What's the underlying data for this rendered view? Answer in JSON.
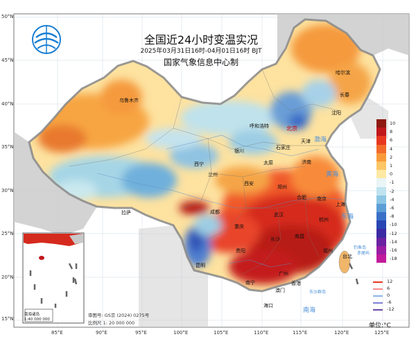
{
  "title": {
    "main": "全国近24小时变温实况",
    "time_range": "2025年03月31日16时-04月01日16时 BJT",
    "organization": "国家气象信息中心制"
  },
  "latitude_labels": [
    "50°N",
    "45°N",
    "40°N",
    "35°N",
    "30°N",
    "25°N",
    "20°N",
    "15°N"
  ],
  "longitude_labels": [
    "85°E",
    "90°E",
    "95°E",
    "100°E",
    "105°E",
    "110°E",
    "115°E",
    "120°E",
    "125°E"
  ],
  "cities": {
    "capital": "北京",
    "others": [
      "哈尔滨",
      "长春",
      "沈阳",
      "乌鲁木齐",
      "呼和浩特",
      "石家庄",
      "天津",
      "银川",
      "太原",
      "济南",
      "西宁",
      "兰州",
      "郑州",
      "西安",
      "合肥",
      "南京",
      "上海",
      "拉萨",
      "成都",
      "武汉",
      "杭州",
      "重庆",
      "长沙",
      "南昌",
      "福州",
      "贵阳",
      "台北",
      "昆明",
      "南宁",
      "广州",
      "香港",
      "澳门",
      "海口"
    ]
  },
  "seas": {
    "bohai": "渤海",
    "yellow_sea": "黄海",
    "east_sea": "东海",
    "south_sea": "南海",
    "islands": [
      "钓鱼岛",
      "赤尾屿",
      "东沙群岛"
    ]
  },
  "inset": {
    "label_line1": "南海诸岛",
    "label_line2": "1:40 000 000"
  },
  "legend": {
    "colors": [
      "#8e1a12",
      "#c0171b",
      "#e8371f",
      "#f26a2a",
      "#f89a3a",
      "#fcc566",
      "#fde9a4",
      "#e9f5f6",
      "#bfe3ef",
      "#8dc6e4",
      "#5b9ed6",
      "#3a6fc8",
      "#2846b3",
      "#3b2aa3",
      "#6a22a0",
      "#9a1ea2",
      "#c21a9c"
    ],
    "labels": [
      "10",
      "8",
      "6",
      "4",
      "2",
      "1",
      "0",
      "-1",
      "-2",
      "-4",
      "-6",
      "-8",
      "-10",
      "-12",
      "-14",
      "-16",
      "-18"
    ]
  },
  "contour_legend": [
    {
      "label": "12",
      "color": "#e8371f"
    },
    {
      "label": "6",
      "color": "#f88a8a"
    },
    {
      "label": "0",
      "color": "#8db4e8"
    },
    {
      "label": "-6",
      "color": "#7f7fd8"
    },
    {
      "label": "-12",
      "color": "#6a4aa8"
    }
  ],
  "approval_number": "审图号: GS京 (2024) 0275号",
  "scale": "比例尺 1: 20 000 000",
  "unit": "单位:°C"
}
